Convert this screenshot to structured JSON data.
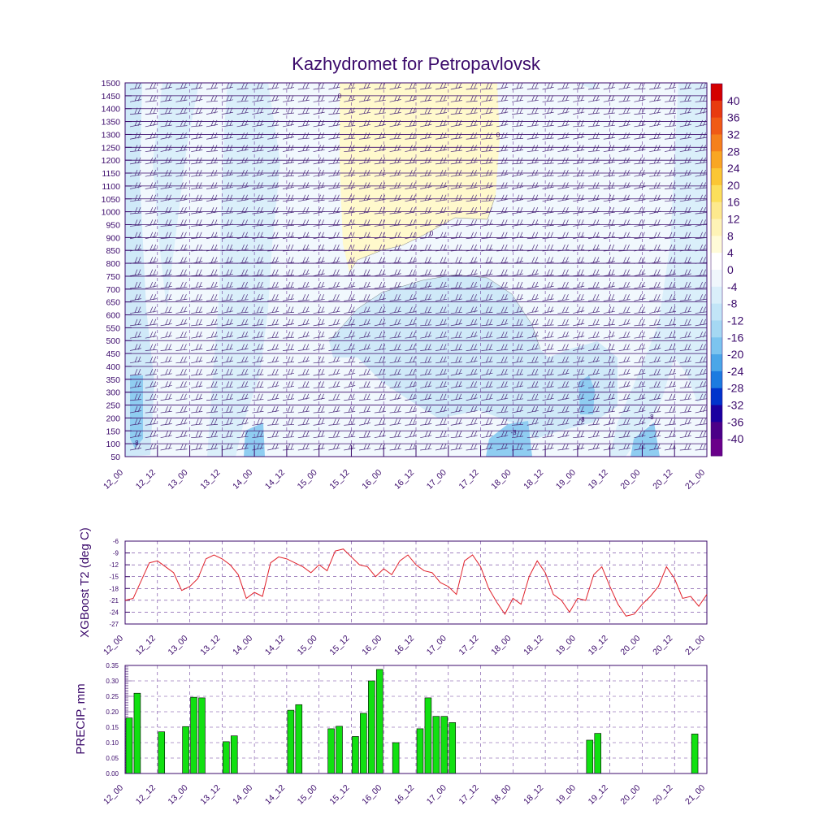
{
  "chart_data": [
    {
      "type": "heatmap",
      "title": "Kazhydromet for Petropavlovsk",
      "x_ticks": [
        "12_00",
        "12_12",
        "13_00",
        "13_12",
        "14_00",
        "14_12",
        "15_00",
        "15_12",
        "16_00",
        "16_12",
        "17_00",
        "17_12",
        "18_00",
        "18_12",
        "19_00",
        "19_12",
        "20_00",
        "20_12",
        "21_00"
      ],
      "y_ticks": [
        "1500",
        "1450",
        "1400",
        "1350",
        "1300",
        "1250",
        "1200",
        "1150",
        "1100",
        "1050",
        "1000",
        "950",
        "900",
        "850",
        "800",
        "750",
        "700",
        "650",
        "600",
        "550",
        "500",
        "450",
        "400",
        "350",
        "300",
        "250",
        "200",
        "150",
        "100",
        "50"
      ],
      "ylim": [
        50,
        1500
      ],
      "colorbar_labels": [
        "40",
        "36",
        "32",
        "28",
        "24",
        "20",
        "16",
        "12",
        "8",
        "4",
        "0",
        "-4",
        "-8",
        "-12",
        "-16",
        "-20",
        "-24",
        "-28",
        "-32",
        "-36",
        "-40"
      ],
      "colorbar_colors": [
        "#d40000",
        "#e83a10",
        "#f05a16",
        "#f5801c",
        "#f9a623",
        "#fbc634",
        "#fcdf5b",
        "#fde98d",
        "#fef3b6",
        "#fffbd8",
        "#ffffff",
        "#f0f7fc",
        "#daeffa",
        "#c2e5f7",
        "#a5d8f3",
        "#7cc4ef",
        "#4aa6e8",
        "#1c7be0",
        "#0033cc",
        "#1a00a0",
        "#4b0088",
        "#6a008a"
      ],
      "contour_labels": [
        "0",
        "0",
        "0",
        "-8",
        "-8",
        "-8",
        "-8"
      ]
    },
    {
      "type": "line",
      "ylabel": "XGBoost T2 (deg C)",
      "x_ticks": [
        "12_00",
        "12_12",
        "13_00",
        "13_12",
        "14_00",
        "14_12",
        "15_00",
        "15_12",
        "16_00",
        "16_12",
        "17_00",
        "17_12",
        "18_00",
        "18_12",
        "19_00",
        "19_12",
        "20_00",
        "20_12",
        "21_00"
      ],
      "y_ticks": [
        "-6",
        "-9",
        "-12",
        "-15",
        "-18",
        "-21",
        "-24",
        "-27"
      ],
      "ylim": [
        -27,
        -6
      ],
      "series": [
        {
          "name": "T2",
          "color": "#e0202a",
          "values": [
            -21,
            -20.5,
            -16,
            -11.5,
            -11,
            -12.5,
            -14,
            -18.5,
            -17.5,
            -15.5,
            -10.5,
            -9.5,
            -10.5,
            -12,
            -14.5,
            -20.5,
            -19,
            -20,
            -11.5,
            -10,
            -10.5,
            -11.5,
            -12.5,
            -14,
            -12,
            -13.5,
            -8.5,
            -8,
            -10,
            -12,
            -12.5,
            -15,
            -13,
            -14.5,
            -11,
            -9.5,
            -12,
            -13.5,
            -14,
            -16.5,
            -17.5,
            -19.5,
            -11,
            -9.5,
            -12.5,
            -18,
            -21.5,
            -24.5,
            -20.5,
            -22,
            -15,
            -11,
            -14,
            -19.5,
            -21,
            -24,
            -20.5,
            -21,
            -14.5,
            -12.5,
            -17.5,
            -22,
            -25,
            -24.5,
            -22,
            -20,
            -17.5,
            -12.5,
            -15.5,
            -20.5,
            -20,
            -22.5,
            -19.5
          ]
        }
      ]
    },
    {
      "type": "bar",
      "ylabel": "PRECIP, mm",
      "x_ticks": [
        "12_00",
        "12_12",
        "13_00",
        "13_12",
        "14_00",
        "14_12",
        "15_00",
        "15_12",
        "16_00",
        "16_12",
        "17_00",
        "17_12",
        "18_00",
        "18_12",
        "19_00",
        "19_12",
        "20_00",
        "20_12",
        "21_00"
      ],
      "y_ticks": [
        "0.35",
        "0.30",
        "0.25",
        "0.20",
        "0.15",
        "0.10",
        "0.05",
        "0.00"
      ],
      "ylim": [
        0,
        0.35
      ],
      "bar_color": "#11e011",
      "values": [
        0.18,
        0.26,
        0,
        0,
        0.135,
        0,
        0,
        0.152,
        0.247,
        0.245,
        0,
        0,
        0.103,
        0.122,
        0,
        0,
        0,
        0,
        0,
        0,
        0.205,
        0.223,
        0,
        0,
        0,
        0.145,
        0.153,
        0,
        0.12,
        0.195,
        0.3,
        0.337,
        0,
        0.1,
        0,
        0,
        0.145,
        0.245,
        0.185,
        0.185,
        0.165,
        0,
        0,
        0,
        0,
        0,
        0,
        0,
        0,
        0,
        0,
        0,
        0,
        0,
        0,
        0,
        0,
        0.108,
        0.13,
        0,
        0,
        0,
        0,
        0,
        0,
        0,
        0,
        0,
        0,
        0,
        0.128,
        0
      ]
    }
  ]
}
